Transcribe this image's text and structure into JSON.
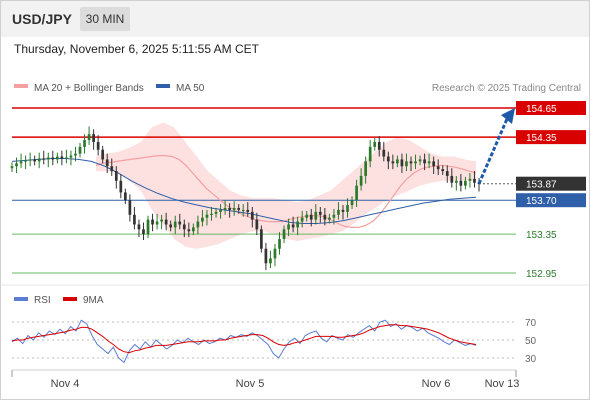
{
  "header": {
    "symbol": "USD/JPY",
    "timeframe": "30 MIN",
    "datetime": "Thursday, November 6, 2025 5:11:55 AM CET"
  },
  "legend": {
    "ma20": "MA 20 + Bollinger Bands",
    "ma50": "MA 50",
    "credit": "Research © 2025 Trading Central",
    "rsi": "RSI",
    "ma9": "9MA"
  },
  "colors": {
    "resistance": "#d90000",
    "support": "#66bb66",
    "ma50": "#2f5fa8",
    "ma20": "#f4a0a0",
    "bands": "#fde0e0",
    "bull": "#2a7a2a",
    "bear": "#333333",
    "arrow": "#1f5aa8",
    "rsi": "#5b7fd0",
    "ma9": "#d90000"
  },
  "chart_data": [
    {
      "type": "candlestick",
      "ylim": [
        152.8,
        154.8
      ],
      "x_ticks": [
        "Nov 4",
        "Nov 5",
        "Nov 6",
        "Nov 13"
      ],
      "levels": [
        {
          "value": 154.65,
          "label": "154.65",
          "kind": "resistance"
        },
        {
          "value": 154.35,
          "label": "154.35",
          "kind": "resistance"
        },
        {
          "value": 153.87,
          "label": "153.87",
          "kind": "current"
        },
        {
          "value": 153.7,
          "label": "153.70",
          "kind": "ma50"
        },
        {
          "value": 153.35,
          "label": "153.35",
          "kind": "support"
        },
        {
          "value": 152.95,
          "label": "152.95",
          "kind": "support"
        }
      ],
      "close": [
        154.05,
        154.08,
        154.1,
        154.11,
        154.12,
        154.1,
        154.13,
        154.12,
        154.14,
        154.12,
        154.15,
        154.13,
        154.14,
        154.16,
        154.18,
        154.25,
        154.32,
        154.38,
        154.3,
        154.22,
        154.12,
        154.05,
        154.0,
        153.9,
        153.78,
        153.7,
        153.55,
        153.45,
        153.4,
        153.35,
        153.5,
        153.45,
        153.48,
        153.5,
        153.45,
        153.42,
        153.48,
        153.45,
        153.4,
        153.38,
        153.42,
        153.48,
        153.52,
        153.55,
        153.56,
        153.58,
        153.6,
        153.62,
        153.6,
        153.62,
        153.6,
        153.6,
        153.58,
        153.5,
        153.4,
        153.2,
        153.05,
        153.1,
        153.2,
        153.3,
        153.4,
        153.45,
        153.42,
        153.48,
        153.52,
        153.55,
        153.5,
        153.58,
        153.55,
        153.5,
        153.52,
        153.55,
        153.6,
        153.58,
        153.65,
        153.7,
        153.85,
        153.95,
        154.1,
        154.25,
        154.3,
        154.22,
        154.15,
        154.1,
        154.08,
        154.12,
        154.05,
        154.1,
        154.08,
        154.1,
        154.12,
        154.08,
        154.1,
        154.05,
        154.02,
        154.0,
        153.95,
        153.88,
        153.9,
        153.85,
        153.9,
        153.92,
        153.88,
        153.87
      ],
      "ma20": [
        154.06,
        154.08,
        154.09,
        154.1,
        154.11,
        154.12,
        154.13,
        154.14,
        154.15,
        154.16,
        154.16,
        154.15,
        154.12,
        154.06,
        153.98,
        153.9,
        153.82,
        153.76,
        153.7,
        153.64,
        153.6,
        153.56,
        153.53,
        153.5,
        153.49,
        153.48,
        153.48,
        153.48,
        153.5,
        153.52,
        153.53,
        153.54,
        153.54,
        153.53,
        153.5,
        153.46,
        153.43,
        153.42,
        153.42,
        153.44,
        153.48,
        153.55,
        153.64,
        153.74,
        153.84,
        153.92,
        153.98,
        154.02,
        154.04,
        154.05,
        154.06,
        154.05,
        154.04,
        154.02,
        154.0,
        153.98
      ],
      "ma50": [
        154.1,
        154.11,
        154.12,
        154.13,
        154.13,
        154.12,
        154.1,
        154.05,
        153.98,
        153.9,
        153.83,
        153.77,
        153.72,
        153.68,
        153.65,
        153.62,
        153.6,
        153.58,
        153.56,
        153.53,
        153.5,
        153.47,
        153.46,
        153.46,
        153.47,
        153.49,
        153.52,
        153.55,
        153.58,
        153.61,
        153.64,
        153.67,
        153.69,
        153.71,
        153.72,
        153.73
      ],
      "band_upper": [
        154.15,
        154.18,
        154.2,
        154.24,
        154.3,
        154.45,
        154.5,
        154.45,
        154.3,
        154.15,
        154.0,
        153.9,
        153.8,
        153.75,
        153.72,
        153.72,
        153.72,
        153.7,
        153.68,
        153.7,
        153.75,
        153.8,
        153.9,
        154.0,
        154.1,
        154.2,
        154.3,
        154.35,
        154.32,
        154.25,
        154.18,
        154.15,
        154.15,
        154.12,
        154.1
      ],
      "band_lower": [
        154.0,
        154.0,
        153.98,
        153.9,
        153.8,
        153.6,
        153.45,
        153.3,
        153.22,
        153.2,
        153.22,
        153.25,
        153.3,
        153.35,
        153.38,
        153.38,
        153.35,
        153.3,
        153.28,
        153.3,
        153.32,
        153.35,
        153.38,
        153.45,
        153.55,
        153.62,
        153.7,
        153.75,
        153.8,
        153.85,
        153.88,
        153.9,
        153.9,
        153.9,
        153.9
      ],
      "projection": {
        "from": 153.87,
        "to": 154.65
      }
    },
    {
      "type": "line",
      "ylim": [
        20,
        80
      ],
      "y_ticks": [
        "70",
        "50",
        "30"
      ],
      "series": [
        {
          "name": "RSI",
          "values": [
            48,
            52,
            46,
            55,
            50,
            58,
            53,
            60,
            56,
            62,
            57,
            65,
            60,
            72,
            68,
            55,
            45,
            40,
            35,
            42,
            30,
            25,
            38,
            45,
            40,
            48,
            42,
            50,
            45,
            40,
            44,
            50,
            47,
            52,
            48,
            45,
            50,
            46,
            48,
            52,
            50,
            55,
            53,
            56,
            54,
            58,
            55,
            50,
            45,
            35,
            30,
            40,
            48,
            52,
            46,
            55,
            58,
            60,
            52,
            48,
            55,
            52,
            50,
            56,
            53,
            58,
            62,
            66,
            60,
            70,
            72,
            65,
            68,
            62,
            66,
            64,
            60,
            63,
            58,
            55,
            52,
            48,
            45,
            50,
            47,
            44,
            46,
            44
          ]
        },
        {
          "name": "9MA",
          "values": [
            49,
            50,
            50,
            52,
            53,
            54,
            55,
            56,
            57,
            58,
            59,
            61,
            62,
            64,
            64,
            62,
            58,
            54,
            49,
            45,
            40,
            37,
            36,
            38,
            39,
            41,
            42,
            44,
            44,
            44,
            45,
            46,
            47,
            48,
            48,
            48,
            49,
            49,
            49,
            50,
            50,
            52,
            53,
            54,
            55,
            56,
            56,
            55,
            52,
            48,
            45,
            44,
            45,
            47,
            48,
            50,
            52,
            54,
            54,
            54,
            54,
            53,
            53,
            54,
            55,
            56,
            58,
            61,
            63,
            65,
            66,
            67,
            67,
            66,
            66,
            65,
            64,
            63,
            62,
            60,
            58,
            55,
            52,
            50,
            48,
            47,
            46,
            45
          ]
        }
      ]
    }
  ]
}
